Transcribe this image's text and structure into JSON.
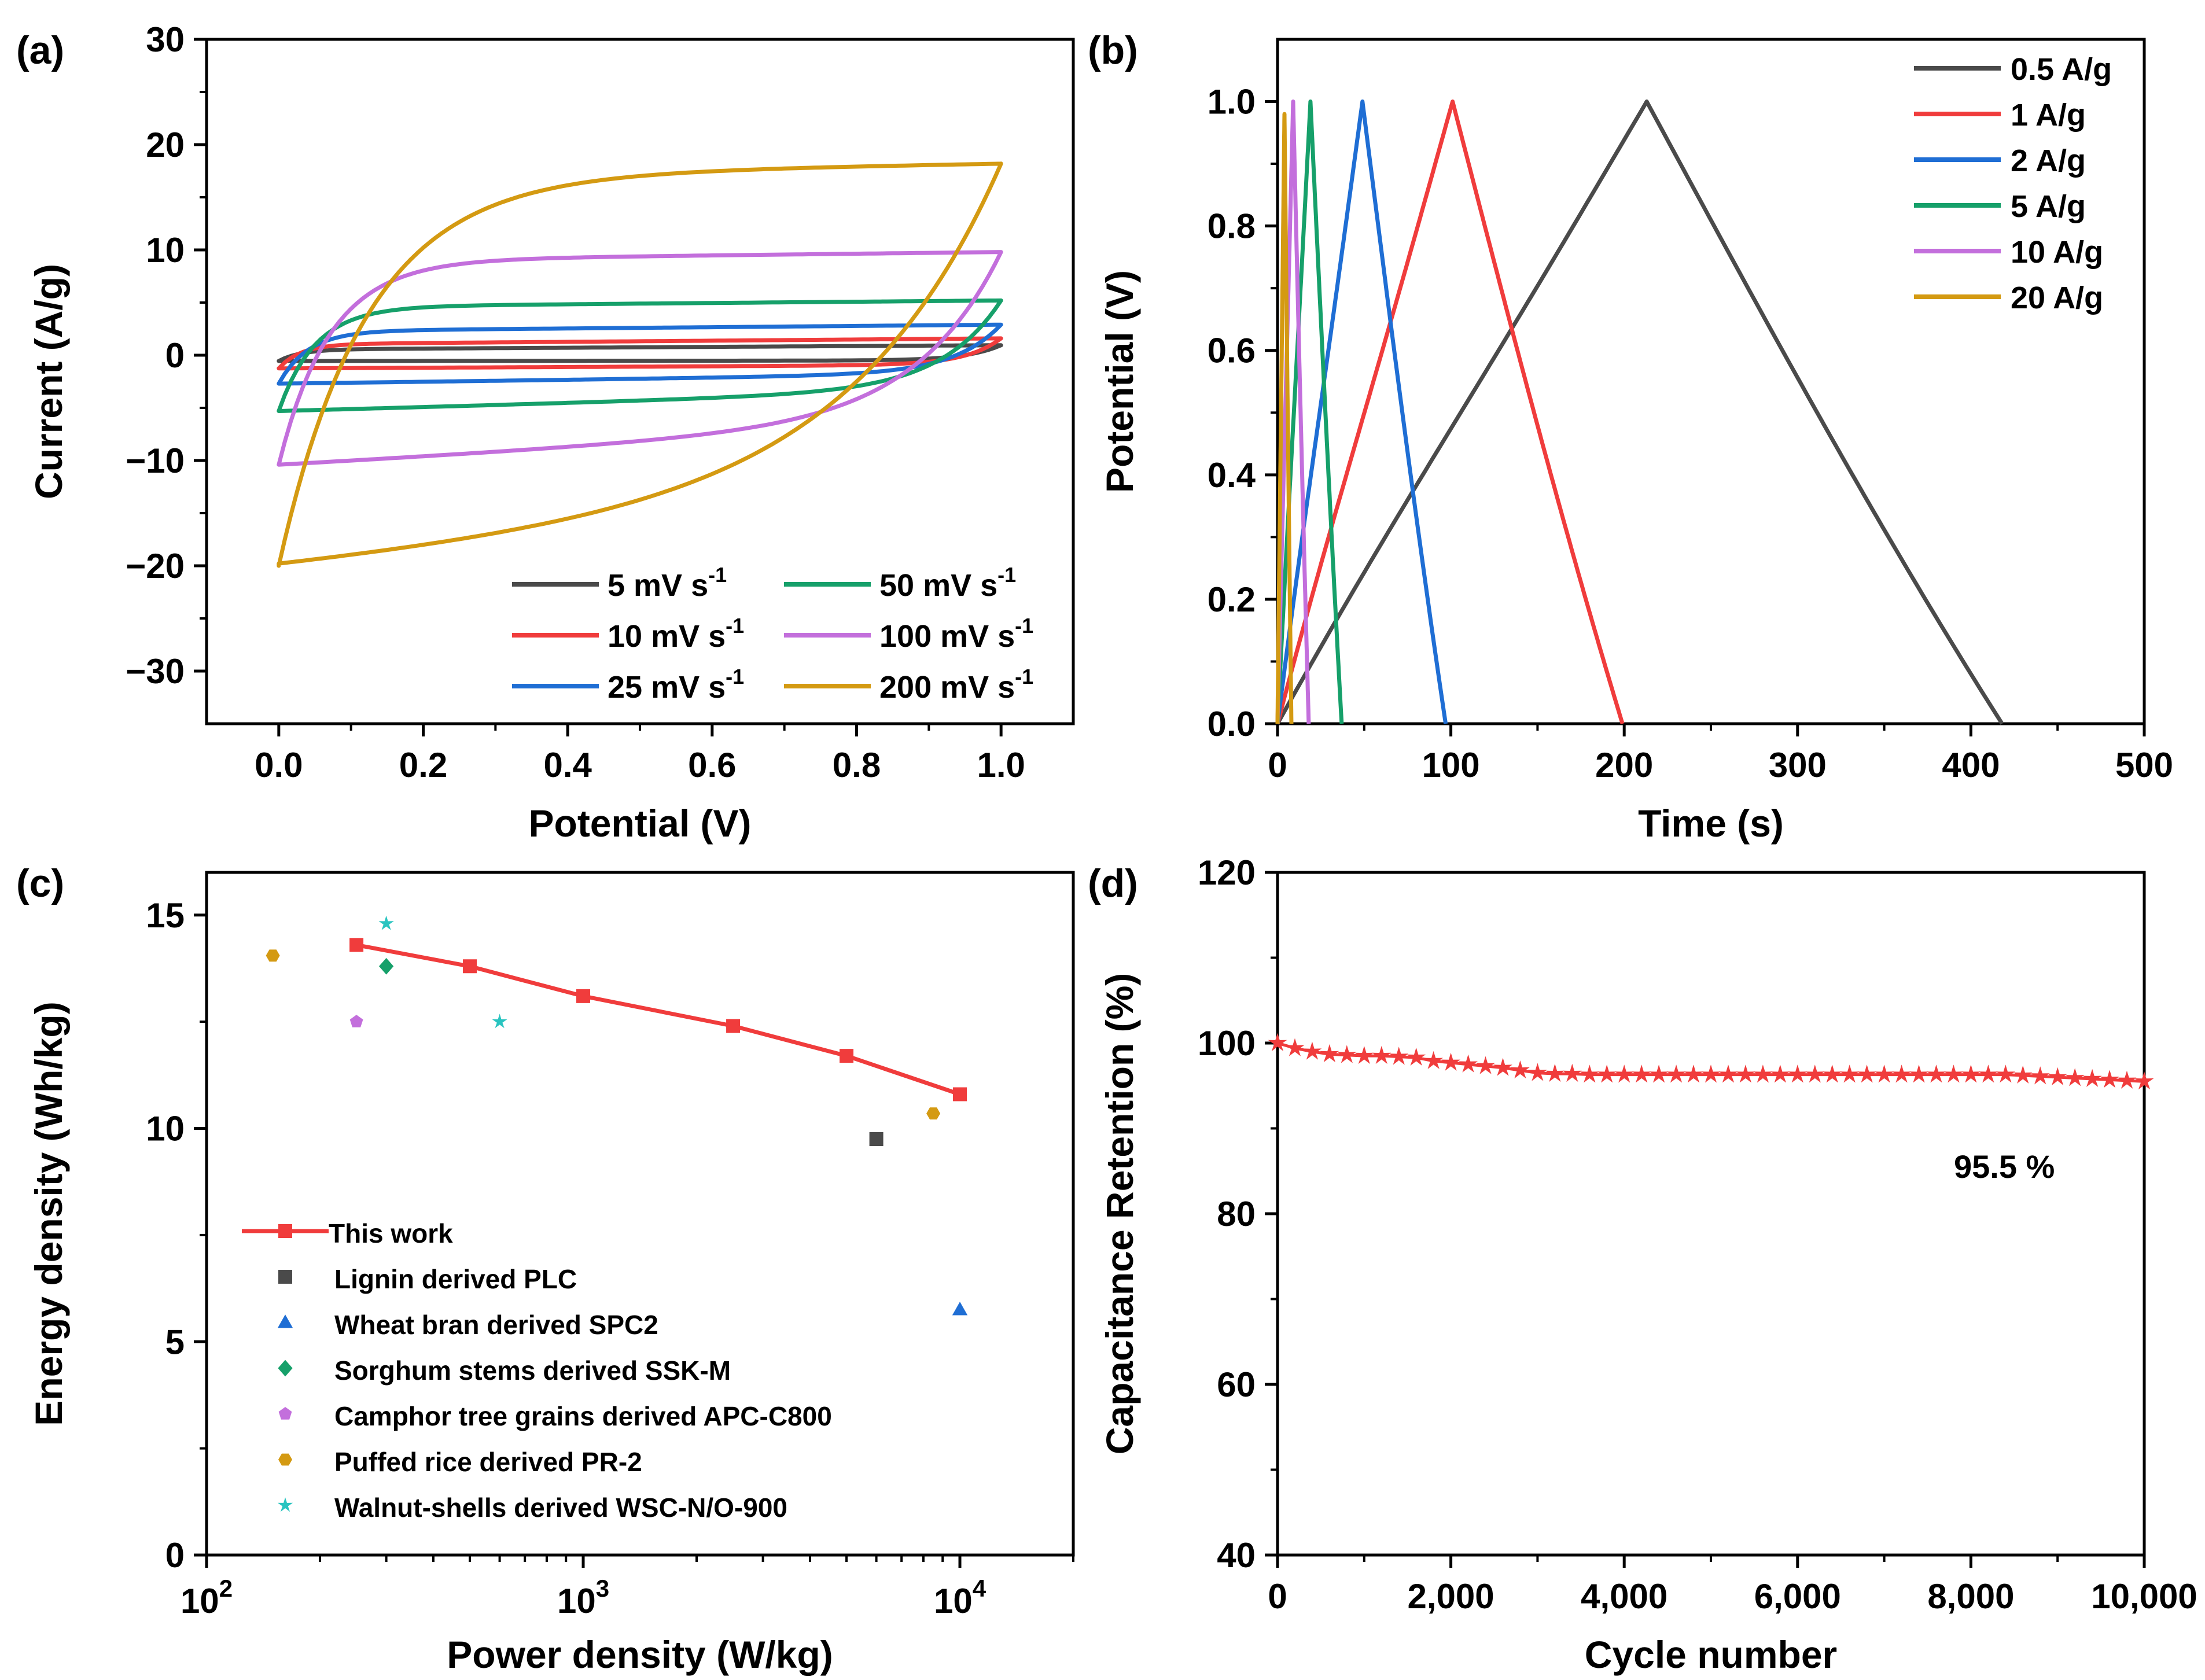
{
  "chart_data": [
    {
      "id": "a",
      "panel_label": "(a)",
      "type": "line",
      "xlabel": "Potential (V)",
      "ylabel": "Current (A/g)",
      "xlim": [
        -0.1,
        1.1
      ],
      "ylim": [
        -35,
        30
      ],
      "xticks": [
        0.0,
        0.2,
        0.4,
        0.6,
        0.8,
        1.0
      ],
      "xtick_labels": [
        "0.0",
        "0.2",
        "0.4",
        "0.6",
        "0.8",
        "1.0"
      ],
      "yticks": [
        -30,
        -20,
        -10,
        0,
        10,
        20,
        30
      ],
      "ytick_labels": [
        "−30",
        "−20",
        "−10",
        "0",
        "10",
        "20",
        "30"
      ],
      "legend_position": "bottom-right",
      "series": [
        {
          "name": "5 mV s",
          "sup": "-1",
          "color": "#4a4a4a",
          "cv": {
            "top_start": 0.55,
            "top_end": 0.95,
            "bot_start": -0.55,
            "bot_end": -0.5,
            "sharp": 0.03
          }
        },
        {
          "name": "10 mV s",
          "sup": "-1",
          "color": "#f03c3c",
          "cv": {
            "top_start": 1.05,
            "top_end": 1.6,
            "bot_start": -1.25,
            "bot_end": -0.9,
            "sharp": 0.03
          }
        },
        {
          "name": "25 mV s",
          "sup": "-1",
          "color": "#1f6ed4",
          "cv": {
            "top_start": 2.3,
            "top_end": 2.9,
            "bot_start": -2.7,
            "bot_end": -1.7,
            "sharp": 0.04
          }
        },
        {
          "name": "50 mV s",
          "sup": "-1",
          "color": "#16a06a",
          "cv": {
            "top_start": 4.6,
            "top_end": 5.2,
            "bot_start": -5.3,
            "bot_end": -3.2,
            "sharp": 0.05
          }
        },
        {
          "name": "100 mV s",
          "sup": "-1",
          "color": "#c36fdc",
          "cv": {
            "top_start": 9.0,
            "top_end": 9.8,
            "bot_start": -10.4,
            "bot_end": -6.0,
            "sharp": 0.07
          }
        },
        {
          "name": "200 mV s",
          "sup": "-1",
          "color": "#d49a12",
          "cv": {
            "top_start": 17.0,
            "top_end": 18.2,
            "bot_start": -20.0,
            "bot_end": -12.0,
            "sharp": 0.12
          }
        }
      ]
    },
    {
      "id": "b",
      "panel_label": "(b)",
      "type": "line",
      "xlabel": "Time (s)",
      "ylabel": "Potential (V)",
      "xlim": [
        0,
        500
      ],
      "ylim": [
        0,
        1.1
      ],
      "xticks": [
        0,
        100,
        200,
        300,
        400,
        500
      ],
      "xtick_labels": [
        "0",
        "100",
        "200",
        "300",
        "400",
        "500"
      ],
      "yticks": [
        0.0,
        0.2,
        0.4,
        0.6,
        0.8,
        1.0
      ],
      "ytick_labels": [
        "0.0",
        "0.2",
        "0.4",
        "0.6",
        "0.8",
        "1.0"
      ],
      "legend_position": "top-right",
      "series": [
        {
          "name": "0.5 A/g",
          "color": "#4a4a4a",
          "gcd": {
            "t_peak": 213,
            "t_end": 418,
            "v_peak": 1.0
          }
        },
        {
          "name": "1 A/g",
          "color": "#f03c3c",
          "gcd": {
            "t_peak": 101,
            "t_end": 199,
            "v_peak": 1.0
          }
        },
        {
          "name": "2 A/g",
          "color": "#1f6ed4",
          "gcd": {
            "t_peak": 49,
            "t_end": 97,
            "v_peak": 1.0
          }
        },
        {
          "name": "5 A/g",
          "color": "#16a06a",
          "gcd": {
            "t_peak": 19,
            "t_end": 37,
            "v_peak": 1.0
          }
        },
        {
          "name": "10 A/g",
          "color": "#c36fdc",
          "gcd": {
            "t_peak": 9,
            "t_end": 18,
            "v_peak": 1.0
          }
        },
        {
          "name": "20 A/g",
          "color": "#d49a12",
          "gcd": {
            "t_peak": 4,
            "t_end": 8,
            "v_peak": 0.98
          }
        }
      ]
    },
    {
      "id": "c",
      "panel_label": "(c)",
      "type": "scatter",
      "xlabel": "Power density (W/kg)",
      "ylabel": "Energy density (Wh/kg)",
      "xscale": "log",
      "xlim": [
        100,
        20000
      ],
      "ylim": [
        0,
        16
      ],
      "xticks": [
        100,
        1000,
        10000
      ],
      "xtick_base": "10",
      "xtick_exps": [
        "2",
        "3",
        "4"
      ],
      "yticks": [
        0,
        5,
        10,
        15
      ],
      "ytick_labels": [
        "0",
        "5",
        "10",
        "15"
      ],
      "legend_position": "bottom-left",
      "series": [
        {
          "name": "This work",
          "color": "#f03c3c",
          "marker": "square",
          "line": true,
          "points": [
            [
              250,
              14.3
            ],
            [
              500,
              13.8
            ],
            [
              1000,
              13.1
            ],
            [
              2500,
              12.4
            ],
            [
              5000,
              11.7
            ],
            [
              10000,
              10.8
            ]
          ]
        },
        {
          "name": "Lignin derived PLC",
          "color": "#4a4a4a",
          "marker": "square",
          "points": [
            [
              6000,
              9.75
            ]
          ]
        },
        {
          "name": "Wheat bran derived SPC2",
          "color": "#1f6ed4",
          "marker": "triangle",
          "points": [
            [
              10000,
              5.75
            ]
          ]
        },
        {
          "name": "Sorghum stems derived SSK-M",
          "color": "#16a06a",
          "marker": "diamond",
          "points": [
            [
              300,
              13.8
            ]
          ]
        },
        {
          "name": "Camphor tree grains derived APC-C800",
          "color": "#c36fdc",
          "marker": "pentagon",
          "points": [
            [
              250,
              12.5
            ]
          ]
        },
        {
          "name": "Puffed rice derived PR-2",
          "color": "#d49a12",
          "marker": "hexagon",
          "points": [
            [
              150,
              14.05
            ],
            [
              8500,
              10.35
            ]
          ]
        },
        {
          "name": "Walnut-shells derived WSC-N/O-900",
          "color": "#29c4c0",
          "marker": "star",
          "points": [
            [
              300,
              14.8
            ],
            [
              600,
              12.5
            ]
          ]
        }
      ]
    },
    {
      "id": "d",
      "panel_label": "(d)",
      "type": "line",
      "xlabel": "Cycle number",
      "ylabel": "Capacitance Retention (%)",
      "xlim": [
        0,
        10000
      ],
      "ylim": [
        40,
        120
      ],
      "xticks": [
        0,
        2000,
        4000,
        6000,
        8000,
        10000
      ],
      "xtick_labels": [
        "0",
        "2,000",
        "4,000",
        "6,000",
        "8,000",
        "10,000"
      ],
      "yticks": [
        40,
        60,
        80,
        100,
        120
      ],
      "ytick_labels": [
        "40",
        "60",
        "80",
        "100",
        "120"
      ],
      "annotation": "95.5 %",
      "series": [
        {
          "name": "retention",
          "color": "#f03c3c",
          "marker": "star",
          "x": [
            0,
            200,
            400,
            600,
            800,
            1000,
            1200,
            1400,
            1600,
            1800,
            2000,
            2200,
            2400,
            2600,
            2800,
            3000,
            3200,
            3400,
            3600,
            3800,
            4000,
            4200,
            4400,
            4600,
            4800,
            5000,
            5200,
            5400,
            5600,
            5800,
            6000,
            6200,
            6400,
            6600,
            6800,
            7000,
            7200,
            7400,
            7600,
            7800,
            8000,
            8200,
            8400,
            8600,
            8800,
            9000,
            9200,
            9400,
            9600,
            9800,
            10000
          ],
          "y": [
            100,
            99.4,
            99.0,
            98.7,
            98.6,
            98.5,
            98.5,
            98.4,
            98.3,
            97.9,
            97.7,
            97.5,
            97.3,
            97.1,
            96.8,
            96.5,
            96.4,
            96.4,
            96.3,
            96.3,
            96.3,
            96.3,
            96.3,
            96.3,
            96.3,
            96.3,
            96.3,
            96.3,
            96.3,
            96.3,
            96.3,
            96.3,
            96.3,
            96.3,
            96.3,
            96.3,
            96.3,
            96.3,
            96.3,
            96.3,
            96.3,
            96.3,
            96.3,
            96.2,
            96.1,
            96.0,
            95.9,
            95.8,
            95.7,
            95.6,
            95.5
          ]
        }
      ]
    }
  ]
}
